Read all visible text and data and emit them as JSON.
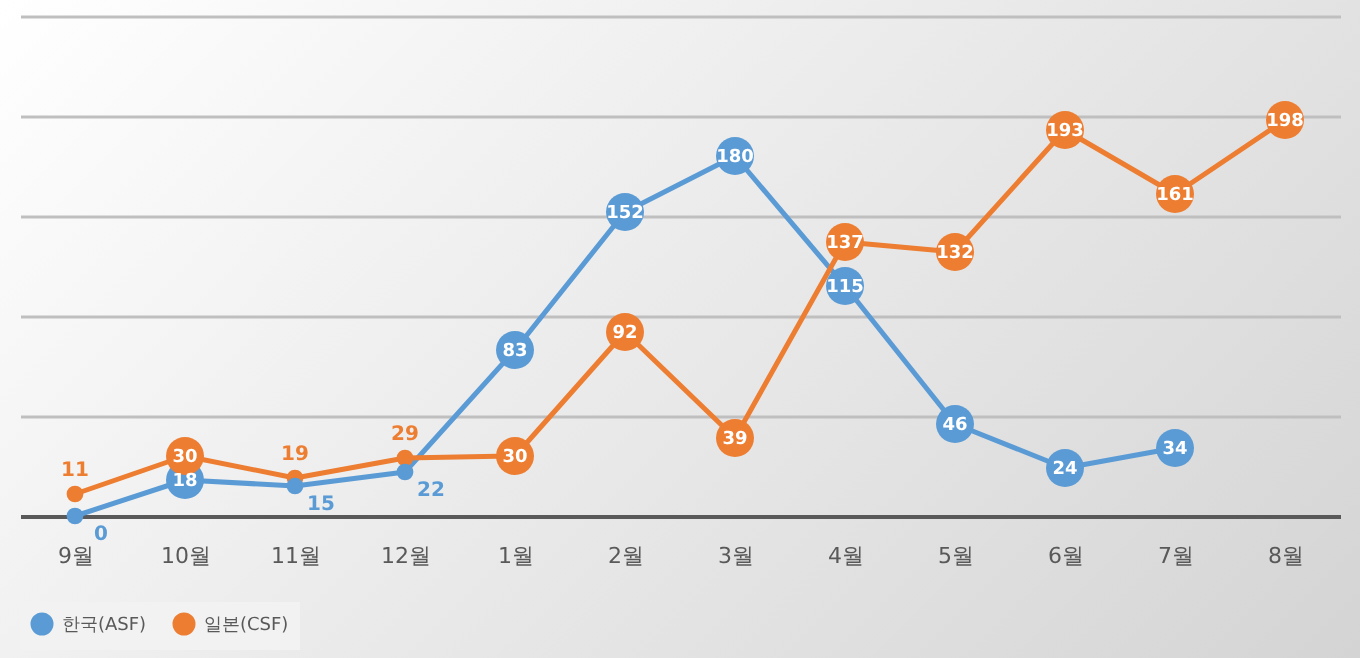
{
  "chart_data": {
    "type": "line",
    "categories": [
      "9월",
      "10월",
      "11월",
      "12월",
      "1월",
      "2월",
      "3월",
      "4월",
      "5월",
      "6월",
      "7월",
      "8월"
    ],
    "series": [
      {
        "name": "한국(ASF)",
        "color": "#5b9bd5",
        "values": [
          0,
          18,
          15,
          22,
          83,
          152,
          180,
          115,
          46,
          24,
          34,
          null
        ]
      },
      {
        "name": "일본(CSF)",
        "color": "#ed7d31",
        "values": [
          11,
          30,
          19,
          29,
          30,
          92,
          39,
          137,
          132,
          193,
          161,
          198
        ]
      }
    ],
    "ylim": [
      0,
      250
    ],
    "yticks": [
      0,
      50,
      100,
      150,
      200,
      250
    ],
    "grid": "y",
    "tick_labels": "x",
    "legend": "bottom",
    "marker": "circle",
    "line_style": "solid",
    "data_labels": true
  }
}
